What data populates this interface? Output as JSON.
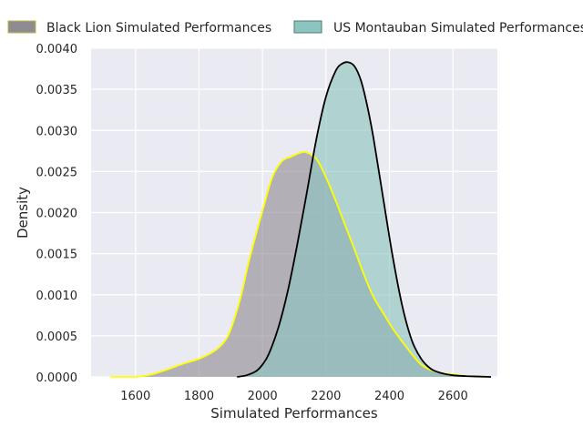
{
  "chart_data": {
    "type": "area",
    "title": "",
    "xlabel": "Simulated Performances",
    "ylabel": "Density",
    "xlim": [
      1460,
      2740
    ],
    "ylim": [
      0,
      0.004
    ],
    "xticks": [
      1600,
      1800,
      2000,
      2200,
      2400,
      2600
    ],
    "xtick_labels": [
      "1600",
      "1800",
      "2000",
      "2200",
      "2400",
      "2600"
    ],
    "yticks": [
      0,
      0.0005,
      0.001,
      0.0015,
      0.002,
      0.0025,
      0.003,
      0.0035,
      0.004
    ],
    "ytick_labels": [
      "0.0000",
      "0.0005",
      "0.0010",
      "0.0015",
      "0.0020",
      "0.0025",
      "0.0030",
      "0.0035",
      "0.0040"
    ],
    "grid": true,
    "legend_position": "top",
    "background_color": "#eaeaf2",
    "series": [
      {
        "name": "Black Lion Simulated Performances",
        "fill_color": "#8f8b93",
        "line_color": "#ffff00",
        "x": [
          1520,
          1600,
          1650,
          1700,
          1750,
          1800,
          1850,
          1880,
          1900,
          1930,
          1960,
          2000,
          2030,
          2060,
          2090,
          2120,
          2140,
          2170,
          2200,
          2230,
          2260,
          2290,
          2320,
          2350,
          2380,
          2410,
          2450,
          2500,
          2550,
          2600,
          2650,
          2700
        ],
        "y": [
          0,
          0,
          3e-05,
          9e-05,
          0.00016,
          0.00022,
          0.00032,
          0.00043,
          0.00058,
          0.00095,
          0.00145,
          0.00202,
          0.00242,
          0.00262,
          0.00268,
          0.00273,
          0.00273,
          0.00265,
          0.00243,
          0.00215,
          0.00185,
          0.00155,
          0.00124,
          0.00097,
          0.00078,
          0.00059,
          0.00038,
          0.00015,
          6e-05,
          3e-05,
          1e-05,
          0
        ]
      },
      {
        "name": "US Montauban Simulated Performances",
        "fill_color": "#8cc5bf",
        "line_color": "#000000",
        "x": [
          1920,
          1950,
          1980,
          2000,
          2020,
          2050,
          2080,
          2110,
          2140,
          2170,
          2200,
          2230,
          2250,
          2270,
          2290,
          2310,
          2330,
          2350,
          2380,
          2410,
          2440,
          2470,
          2500,
          2530,
          2560,
          2600,
          2640,
          2680,
          2720
        ],
        "y": [
          0,
          2e-05,
          7e-05,
          0.00015,
          0.00028,
          0.0006,
          0.00105,
          0.00162,
          0.00225,
          0.0029,
          0.00341,
          0.00372,
          0.00381,
          0.00383,
          0.00378,
          0.00361,
          0.0033,
          0.0029,
          0.00218,
          0.00147,
          0.00087,
          0.00045,
          0.00022,
          0.0001,
          5e-05,
          2e-05,
          1e-05,
          5e-06,
          0
        ]
      }
    ]
  }
}
